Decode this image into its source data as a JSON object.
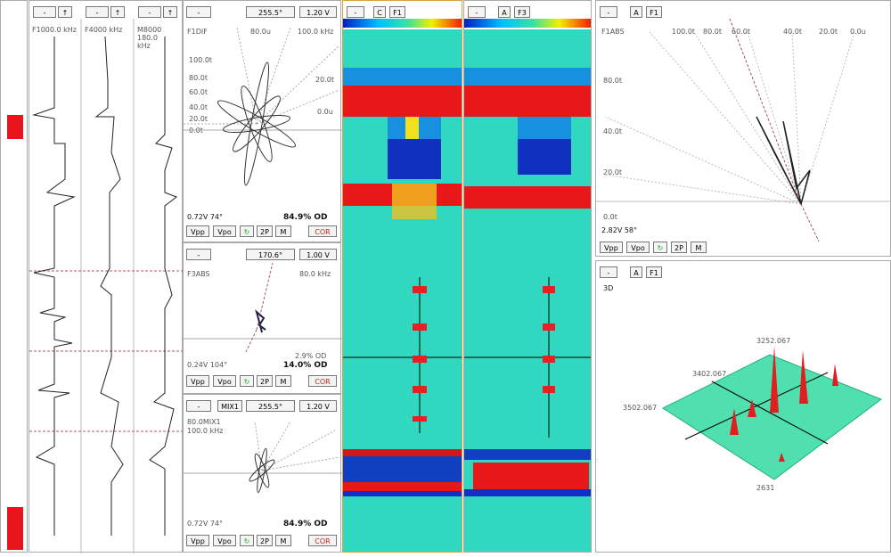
{
  "strip_charts": [
    {
      "label": "F1000.0 kHz"
    },
    {
      "label": "F4000 kHz"
    },
    {
      "label": "M8000 180.0 kHz"
    }
  ],
  "lissajous": [
    {
      "channel": "F1DIF",
      "rotation": "255.5°",
      "span": "1.20 V",
      "freq": "100.0 kHz",
      "scale_left": [
        "100.0t",
        "80.0t",
        "60.0t",
        "40.0t",
        "20.0t",
        "0.0t"
      ],
      "scale_top": "80.0u",
      "scale_right": [
        "20.0t",
        "0.0u"
      ],
      "reading": "0.72V 74°",
      "depth": "84.9% OD"
    },
    {
      "channel": "F3ABS",
      "rotation": "170.6°",
      "span": "1.00 V",
      "freq": "80.0 kHz",
      "extra": "2.9% OD",
      "reading": "0.24V 104°",
      "depth": "14.0% OD"
    },
    {
      "channel": "80.0MIX1",
      "mode": "MIX1",
      "rotation": "255.5°",
      "span": "1.20 V",
      "freq": "100.0 kHz",
      "reading": "0.72V 74°",
      "depth": "84.9% OD"
    }
  ],
  "buttons": {
    "vpp": "Vpp",
    "vpo": "Vpo",
    "two_p": "2P",
    "m": "M",
    "cor": "COR"
  },
  "cscans": [
    {
      "mode": "C",
      "channel": "F1"
    },
    {
      "mode": "A",
      "channel": "F3"
    }
  ],
  "right_lissajous": {
    "channel": "F1ABS",
    "top_scale": [
      "100.0t",
      "80.0t",
      "60.0t",
      "40.0t",
      "20.0t",
      "0.0u"
    ],
    "left_scale": [
      "80.0t",
      "40.0t",
      "20.0t",
      "0.0t"
    ],
    "reading": "2.82V 58°"
  },
  "three_d": {
    "mode": "A",
    "channel": "F1",
    "title": "3D",
    "axis_labels": [
      "3252.067",
      "3402.067",
      "3502.067",
      "2631"
    ]
  }
}
